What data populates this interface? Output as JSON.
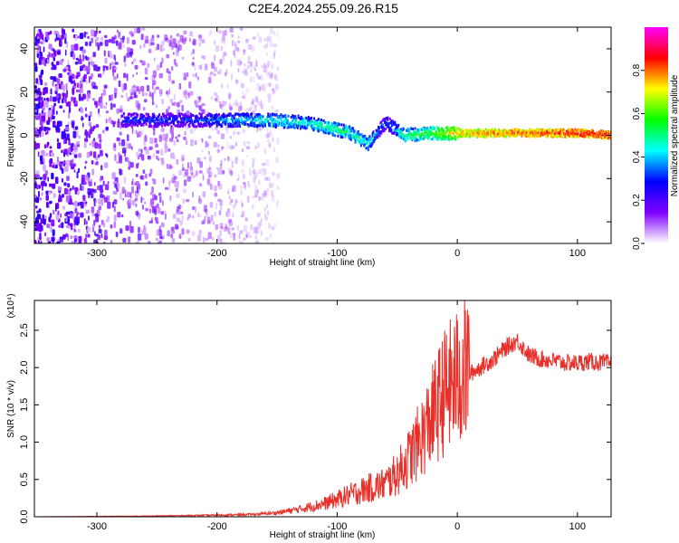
{
  "title": "C2E4.2024.255.09.26.R15",
  "chart_data": [
    {
      "type": "heatmap",
      "title": "C2E4.2024.255.09.26.R15",
      "xlabel": "Height of straight line (km)",
      "ylabel": "Frequency (Hz)",
      "xlim": [
        -352,
        128
      ],
      "ylim": [
        -50,
        50
      ],
      "x_ticks": [
        -300,
        -200,
        -100,
        0,
        100
      ],
      "y_ticks": [
        -40,
        -20,
        0,
        20,
        40
      ],
      "colorbar": {
        "label": "Normalized spectral amplitude",
        "range": [
          0,
          1
        ],
        "ticks": [
          "0.0",
          "0.2",
          "0.4",
          "0.6",
          "0.8"
        ],
        "colormap": [
          "#ffffff",
          "#8000ff",
          "#0000ff",
          "#00ffff",
          "#00ff00",
          "#ffff00",
          "#ff0000",
          "#ff00ff"
        ]
      },
      "ridge": [
        {
          "x": -280,
          "y": 7,
          "amp": 0.3
        },
        {
          "x": -250,
          "y": 7,
          "amp": 0.3
        },
        {
          "x": -220,
          "y": 7,
          "amp": 0.3
        },
        {
          "x": -190,
          "y": 7,
          "amp": 0.4
        },
        {
          "x": -160,
          "y": 7,
          "amp": 0.45
        },
        {
          "x": -130,
          "y": 6,
          "amp": 0.45
        },
        {
          "x": -110,
          "y": 4,
          "amp": 0.5
        },
        {
          "x": -90,
          "y": 1,
          "amp": 0.5
        },
        {
          "x": -75,
          "y": -4,
          "amp": 0.45
        },
        {
          "x": -60,
          "y": 6,
          "amp": 0.3
        },
        {
          "x": -45,
          "y": 0,
          "amp": 0.5
        },
        {
          "x": -20,
          "y": 1,
          "amp": 0.6
        },
        {
          "x": 0,
          "y": 1,
          "amp": 0.75
        },
        {
          "x": 50,
          "y": 1,
          "amp": 0.8
        },
        {
          "x": 100,
          "y": 1,
          "amp": 0.85
        },
        {
          "x": 128,
          "y": 0,
          "amp": 0.85
        }
      ],
      "noise_extent_x": [
        -352,
        -150
      ]
    },
    {
      "type": "line",
      "xlabel": "Height of straight line (km)",
      "ylabel": "SNR (10 * v/v)",
      "y_scale_label": "(x10⁴)",
      "xlim": [
        -352,
        128
      ],
      "ylim": [
        0,
        2.9
      ],
      "x_ticks": [
        -300,
        -200,
        -100,
        0,
        100
      ],
      "y_ticks": [
        "0.0",
        "0.5",
        "1.0",
        "1.5",
        "2.0",
        "2.5"
      ],
      "color": "#e8302a",
      "series": [
        {
          "x": [
            -352,
            -300,
            -250,
            -200,
            -170,
            -150,
            -130,
            -110,
            -100,
            -90,
            -80,
            -70,
            -60,
            -50,
            -40,
            -30,
            -20,
            -10,
            0,
            10,
            20,
            30,
            40,
            50,
            60,
            70,
            80,
            90,
            100,
            110,
            120,
            128
          ],
          "y": [
            0.0,
            0.005,
            0.01,
            0.02,
            0.03,
            0.05,
            0.1,
            0.17,
            0.22,
            0.28,
            0.33,
            0.38,
            0.42,
            0.55,
            0.75,
            1.0,
            1.3,
            1.6,
            1.75,
            1.9,
            2.0,
            2.1,
            2.25,
            2.35,
            2.15,
            2.1,
            2.08,
            2.05,
            2.05,
            2.07,
            2.05,
            2.05
          ]
        }
      ]
    }
  ]
}
